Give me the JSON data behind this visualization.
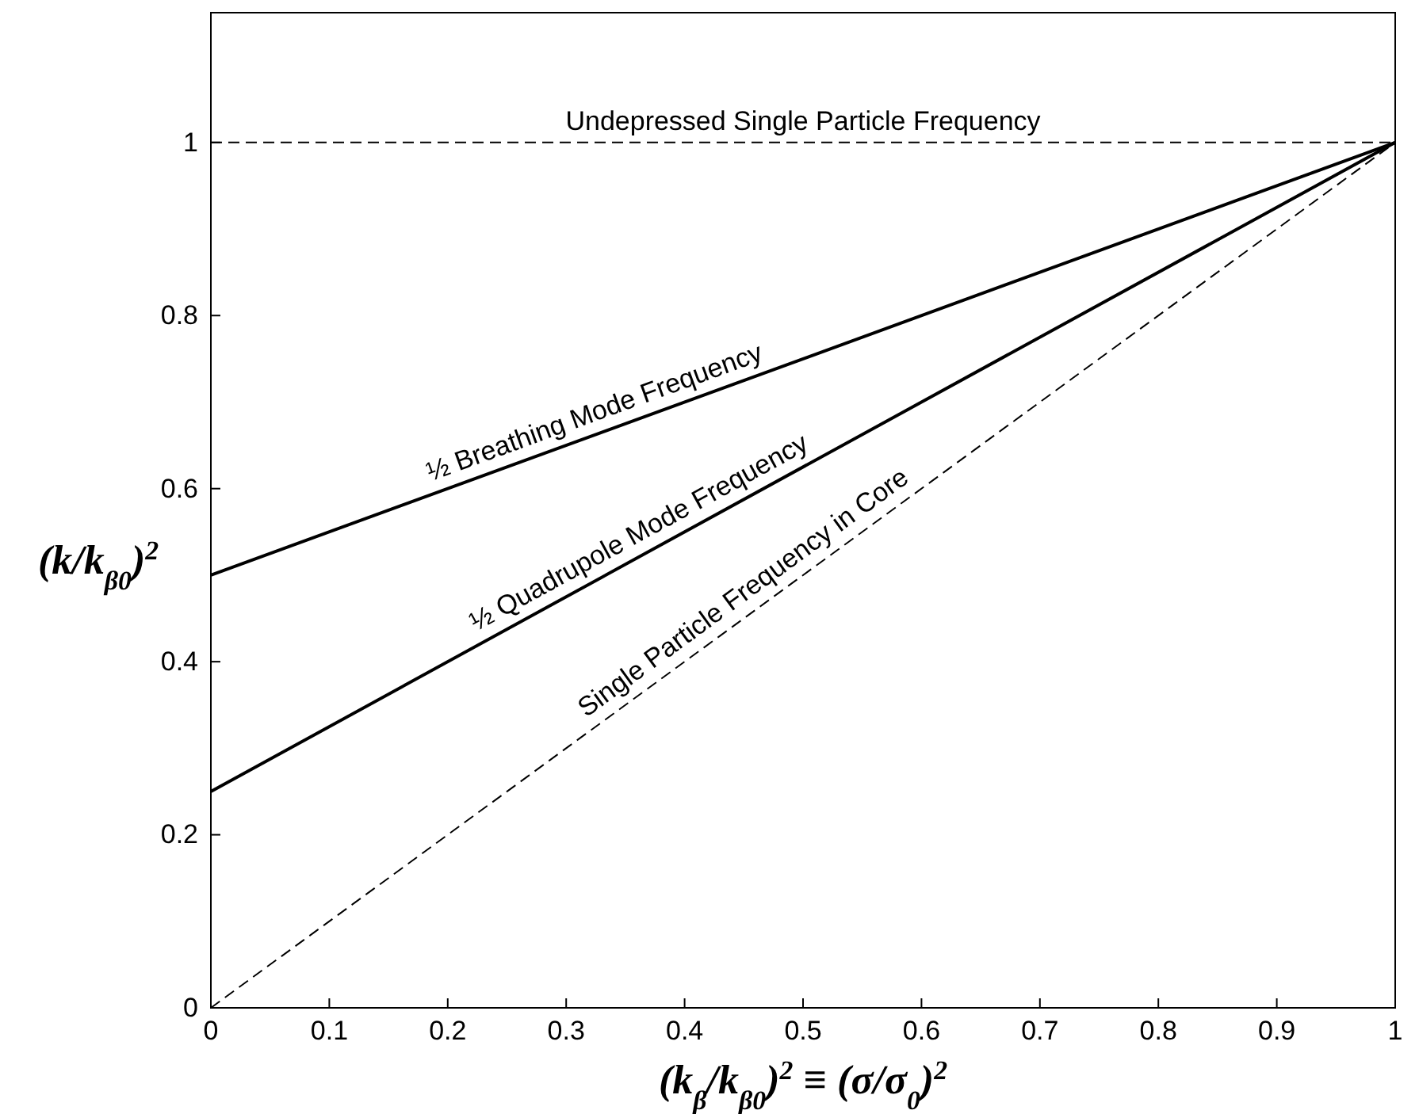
{
  "chart_data": {
    "type": "line",
    "xlabel": "(k$_{β}$/k$_{β0}$)$^{2}$ ≡ (σ/σ$_{0}$)$^{2}$",
    "ylabel": "(k/k$_{β0}$)$^{2}$",
    "x": [
      0,
      1
    ],
    "series": [
      {
        "color": "#000000",
        "values": [
          0.5,
          1
        ],
        "line_style": "solid"
      },
      {
        "color": "#000000",
        "values": [
          0.25,
          1
        ],
        "line_style": "solid"
      },
      {
        "color": "#000000",
        "values": [
          0,
          1
        ],
        "line_style": "dashed"
      }
    ],
    "annotations": [
      {
        "text": "½ Breathing Mode Frequency",
        "x": 0.33,
        "y": 0.665
      },
      {
        "text": "½ Quadrupole Mode Frequency",
        "x": 0.37,
        "y": 0.5275
      },
      {
        "text": "Single Particle Frequency in Core",
        "x": 0.46,
        "y": 0.46
      }
    ],
    "ref_lines": [
      {
        "axis": "y",
        "value": 1,
        "label": "Undepressed Single Particle Frequency",
        "line_style": "dashed"
      }
    ],
    "xlim": [
      0,
      1
    ],
    "ylim": [
      0,
      1.15
    ],
    "xticks": [
      0,
      0.1,
      0.2,
      0.3,
      0.4,
      0.5,
      0.6,
      0.7,
      0.8,
      0.9,
      1
    ],
    "yticks": [
      0,
      0.2,
      0.4,
      0.6,
      0.8,
      1
    ],
    "grid": false
  }
}
